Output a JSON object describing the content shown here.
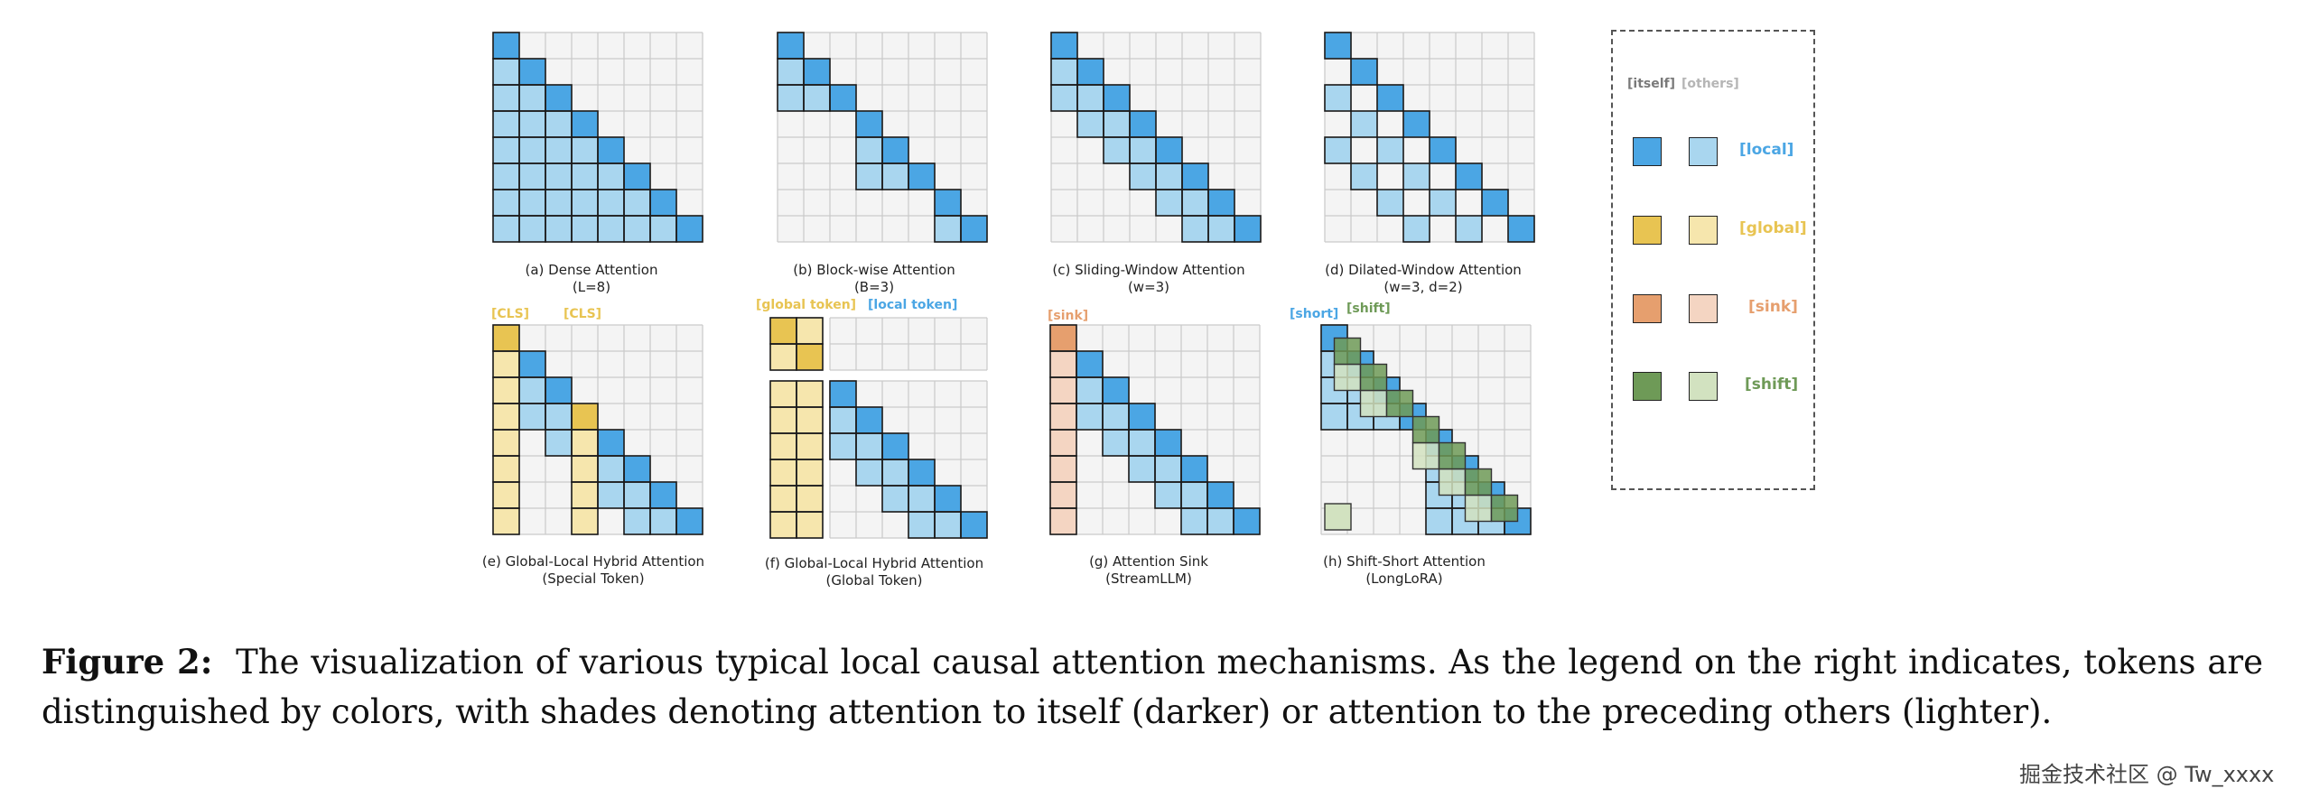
{
  "colors": {
    "local_dark": "#4ba6e4",
    "local_light": "#a9d6ef",
    "global_dark": "#e8c452",
    "global_light": "#f6e6ad",
    "sink_dark": "#e69f6e",
    "sink_light": "#f4d5c2",
    "shift_dark": "#6e9a57",
    "shift_light": "#d2e2c0",
    "grid_line": "#c9c9c9",
    "block_line": "#1a1a1a",
    "empty_cell": "#f4f4f4"
  },
  "panels": {
    "a": {
      "line1": "(a) Dense Attention",
      "line2": "(L=8)"
    },
    "b": {
      "line1": "(b) Block-wise Attention",
      "line2": "(B=3)"
    },
    "c": {
      "line1": "(c) Sliding-Window Attention",
      "line2": "(w=3)"
    },
    "d": {
      "line1": "(d) Dilated-Window Attention",
      "line2": "(w=3, d=2)"
    },
    "e": {
      "line1": "(e) Global-Local Hybrid Attention",
      "line2": "(Special Token)",
      "tag1": "[CLS]",
      "tag2": "[CLS]"
    },
    "f": {
      "line1": "(f) Global-Local Hybrid Attention",
      "line2": "(Global Token)",
      "tag1": "[global token]",
      "tag2": "[local token]"
    },
    "g": {
      "line1": "(g) Attention Sink",
      "line2": "(StreamLLM)",
      "tag1": "[sink]"
    },
    "h": {
      "line1": "(h) Shift-Short Attention",
      "line2": "(LongLoRA)",
      "tag1": "[short]",
      "tag2": "[shift]"
    }
  },
  "legend": {
    "head_itself": "[itself]",
    "head_others": "[others]",
    "rows": [
      {
        "label": "[local]",
        "key": "local"
      },
      {
        "label": "[global]",
        "key": "global"
      },
      {
        "label": "[sink]",
        "key": "sink"
      },
      {
        "label": "[shift]",
        "key": "shift"
      }
    ]
  },
  "caption": {
    "label": "Figure 2:",
    "text": "The visualization of various typical local causal attention mechanisms. As the legend on the right indicates, tokens are distinguished by colors, with shades denoting attention to itself (darker) or attention to the preceding others (lighter)."
  },
  "watermark": "掘金技术社区 @ Tw_xxxx"
}
